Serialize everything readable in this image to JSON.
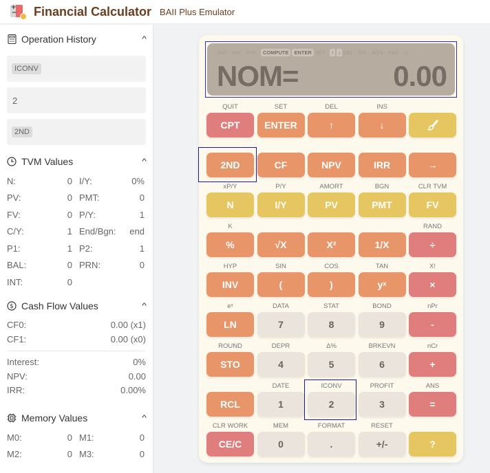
{
  "header": {
    "title": "Financial Calculator",
    "subtitle": "BAII Plus Emulator",
    "logo_icon": "calculator-coin-icon"
  },
  "sidebar": {
    "operation_history": {
      "title": "Operation History",
      "icon": "calculator-icon",
      "items": [
        {
          "label": "ICONV",
          "style": "tag"
        },
        {
          "label": "2",
          "style": "plain"
        },
        {
          "label": "2ND",
          "style": "tag"
        }
      ]
    },
    "tvm_values": {
      "title": "TVM Values",
      "icon": "clock-icon",
      "rows": [
        [
          {
            "key": "N:",
            "value": "0"
          },
          {
            "key": "I/Y:",
            "value": "0%"
          }
        ],
        [
          {
            "key": "PV:",
            "value": "0"
          },
          {
            "key": "PMT:",
            "value": "0"
          }
        ],
        [
          {
            "key": "FV:",
            "value": "0"
          },
          {
            "key": "P/Y:",
            "value": "1"
          }
        ],
        [
          {
            "key": "C/Y:",
            "value": "1"
          },
          {
            "key": "End/Bgn:",
            "value": "end"
          }
        ],
        [
          {
            "key": "P1:",
            "value": "1"
          },
          {
            "key": "P2:",
            "value": "1"
          }
        ],
        [
          {
            "key": "BAL:",
            "value": "0"
          },
          {
            "key": "PRN:",
            "value": "0"
          }
        ],
        [
          {
            "key": "INT:",
            "value": "0"
          }
        ]
      ]
    },
    "cash_flow_values": {
      "title": "Cash Flow Values",
      "icon": "dollar-circle-icon",
      "flows": [
        {
          "key": "CF0:",
          "value": "0.00 (x1)"
        },
        {
          "key": "CF1:",
          "value": "0.00 (x0)"
        }
      ],
      "summary": [
        {
          "key": "Interest:",
          "value": "0%"
        },
        {
          "key": "NPV:",
          "value": "0.00"
        },
        {
          "key": "IRR:",
          "value": "0.00%"
        }
      ]
    },
    "memory_values": {
      "title": "Memory Values",
      "icon": "chip-icon",
      "rows": [
        [
          {
            "key": "M0:",
            "value": "0"
          },
          {
            "key": "M1:",
            "value": "0"
          }
        ],
        [
          {
            "key": "M2:",
            "value": "0"
          },
          {
            "key": "M3:",
            "value": "0"
          }
        ]
      ]
    }
  },
  "display": {
    "indicators": [
      {
        "label": "2ND",
        "active": false
      },
      {
        "label": "INV",
        "active": false
      },
      {
        "label": "HYP",
        "active": false
      },
      {
        "label": "COMPUTE",
        "active": true
      },
      {
        "label": "ENTER",
        "active": true
      },
      {
        "label": "SET",
        "active": false
      },
      {
        "label": "↑",
        "active": true
      },
      {
        "label": "↓",
        "active": true
      },
      {
        "label": "DEL",
        "active": false
      },
      {
        "label": "INS",
        "active": false
      },
      {
        "label": "BGN",
        "active": false
      },
      {
        "label": "RAD",
        "active": false
      },
      {
        "label": "◁",
        "active": false
      },
      {
        "label": "▫",
        "active": false
      }
    ],
    "label": "NOM=",
    "value": "0.00"
  },
  "keypad": {
    "rows": [
      {
        "sublabels": [
          "QUIT",
          "SET",
          "DEL",
          "INS",
          ""
        ],
        "keys": [
          {
            "label": "CPT",
            "color": "red",
            "name": "cpt"
          },
          {
            "label": "ENTER",
            "color": "orange",
            "name": "enter"
          },
          {
            "label": "↑",
            "color": "orange",
            "name": "up"
          },
          {
            "label": "↓",
            "color": "orange",
            "name": "down"
          },
          {
            "label": "🖌",
            "color": "yellow",
            "name": "theme-brush"
          }
        ]
      },
      {
        "sublabels": [
          "",
          "",
          "",
          "",
          ""
        ],
        "keys": [
          {
            "label": "2ND",
            "color": "orange",
            "name": "2nd"
          },
          {
            "label": "CF",
            "color": "orange",
            "name": "cf"
          },
          {
            "label": "NPV",
            "color": "orange",
            "name": "npv"
          },
          {
            "label": "IRR",
            "color": "orange",
            "name": "irr"
          },
          {
            "label": "→",
            "color": "orange",
            "name": "right-arrow"
          }
        ]
      },
      {
        "sublabels": [
          "xP/Y",
          "P/Y",
          "AMORT",
          "BGN",
          "CLR TVM"
        ],
        "keys": [
          {
            "label": "N",
            "color": "yellow",
            "name": "n"
          },
          {
            "label": "I/Y",
            "color": "yellow",
            "name": "iy"
          },
          {
            "label": "PV",
            "color": "yellow",
            "name": "pv"
          },
          {
            "label": "PMT",
            "color": "yellow",
            "name": "pmt"
          },
          {
            "label": "FV",
            "color": "yellow",
            "name": "fv"
          }
        ]
      },
      {
        "sublabels": [
          "K",
          "",
          "",
          "",
          "RAND"
        ],
        "keys": [
          {
            "label": "%",
            "color": "orange",
            "name": "percent"
          },
          {
            "label": "√X",
            "color": "orange",
            "name": "sqrt"
          },
          {
            "label": "X²",
            "color": "orange",
            "name": "square"
          },
          {
            "label": "1/X",
            "color": "orange",
            "name": "reciprocal"
          },
          {
            "label": "÷",
            "color": "red",
            "name": "divide"
          }
        ]
      },
      {
        "sublabels": [
          "HYP",
          "SIN",
          "COS",
          "TAN",
          "X!"
        ],
        "keys": [
          {
            "label": "INV",
            "color": "orange",
            "name": "inv"
          },
          {
            "label": "(",
            "color": "orange",
            "name": "open-paren"
          },
          {
            "label": ")",
            "color": "orange",
            "name": "close-paren"
          },
          {
            "label": "yˣ",
            "color": "orange",
            "name": "power"
          },
          {
            "label": "×",
            "color": "red",
            "name": "multiply"
          }
        ]
      },
      {
        "sublabels": [
          "eˣ",
          "DATA",
          "STAT",
          "BOND",
          "nPr"
        ],
        "keys": [
          {
            "label": "LN",
            "color": "orange",
            "name": "ln"
          },
          {
            "label": "7",
            "color": "num",
            "name": "7"
          },
          {
            "label": "8",
            "color": "num",
            "name": "8"
          },
          {
            "label": "9",
            "color": "num",
            "name": "9"
          },
          {
            "label": "-",
            "color": "red",
            "name": "subtract"
          }
        ]
      },
      {
        "sublabels": [
          "ROUND",
          "DEPR",
          "Δ%",
          "BRKEVN",
          "nCr"
        ],
        "keys": [
          {
            "label": "STO",
            "color": "orange",
            "name": "sto"
          },
          {
            "label": "4",
            "color": "num",
            "name": "4"
          },
          {
            "label": "5",
            "color": "num",
            "name": "5"
          },
          {
            "label": "6",
            "color": "num",
            "name": "6"
          },
          {
            "label": "+",
            "color": "red",
            "name": "add"
          }
        ]
      },
      {
        "sublabels": [
          "",
          "DATE",
          "ICONV",
          "PROFIT",
          "ANS"
        ],
        "keys": [
          {
            "label": "RCL",
            "color": "orange",
            "name": "rcl"
          },
          {
            "label": "1",
            "color": "num",
            "name": "1"
          },
          {
            "label": "2",
            "color": "num",
            "name": "2"
          },
          {
            "label": "3",
            "color": "num",
            "name": "3"
          },
          {
            "label": "=",
            "color": "red",
            "name": "equals"
          }
        ]
      },
      {
        "sublabels": [
          "CLR WORK",
          "MEM",
          "FORMAT",
          "RESET",
          ""
        ],
        "keys": [
          {
            "label": "CE/C",
            "color": "red",
            "name": "cec"
          },
          {
            "label": "0",
            "color": "num",
            "name": "0"
          },
          {
            "label": ".",
            "color": "num",
            "name": "decimal"
          },
          {
            "label": "+/-",
            "color": "num",
            "name": "sign"
          },
          {
            "label": "?",
            "color": "yellow",
            "name": "help"
          }
        ]
      }
    ]
  },
  "colors": {
    "orange": "#e8956a",
    "red": "#e07e7e",
    "yellow": "#e5c660",
    "num": "#ebe4dc",
    "display_bg": "#b7aca0",
    "title_brown": "#6b3e1f"
  }
}
